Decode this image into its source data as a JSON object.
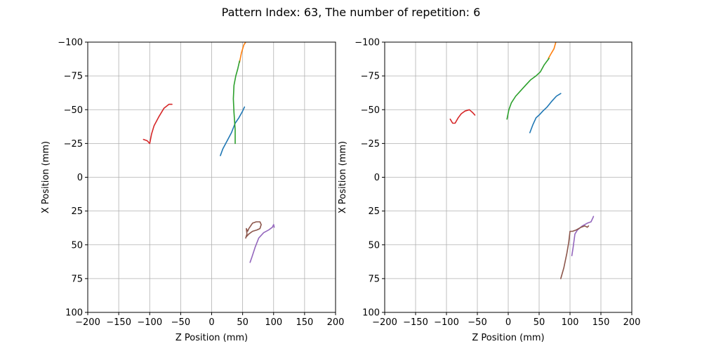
{
  "figure": {
    "title": "Pattern Index: 63, The number of repetition: 6"
  },
  "chart_data": [
    {
      "type": "line",
      "xlabel": "Z Position (mm)",
      "ylabel": "X Position (mm)",
      "xlim": [
        -200,
        200
      ],
      "ylim": [
        100,
        -100
      ],
      "y_inverted": true,
      "grid": true,
      "xticks": [
        -200,
        -150,
        -100,
        -50,
        0,
        50,
        100,
        150,
        200
      ],
      "yticks": [
        -100,
        -75,
        -50,
        -25,
        0,
        25,
        50,
        75,
        100
      ],
      "series": [
        {
          "color": "#1f77b4",
          "points": [
            [
              14,
              -16
            ],
            [
              18,
              -21
            ],
            [
              25,
              -27
            ],
            [
              32,
              -33
            ],
            [
              38,
              -40
            ],
            [
              44,
              -44
            ],
            [
              50,
              -49
            ],
            [
              53,
              -52
            ]
          ]
        },
        {
          "color": "#ff7f0e",
          "points": [
            [
              45,
              -85
            ],
            [
              48,
              -92
            ],
            [
              52,
              -98
            ],
            [
              55,
              -100
            ]
          ]
        },
        {
          "color": "#2ca02c",
          "points": [
            [
              38,
              -25
            ],
            [
              38,
              -35
            ],
            [
              36,
              -48
            ],
            [
              35,
              -58
            ],
            [
              36,
              -68
            ],
            [
              39,
              -75
            ],
            [
              42,
              -80
            ],
            [
              45,
              -86
            ]
          ]
        },
        {
          "color": "#d62728",
          "points": [
            [
              -110,
              -28
            ],
            [
              -104,
              -27
            ],
            [
              -100,
              -25
            ],
            [
              -97,
              -32
            ],
            [
              -93,
              -38
            ],
            [
              -85,
              -45
            ],
            [
              -77,
              -51
            ],
            [
              -69,
              -54
            ],
            [
              -64,
              -54
            ]
          ]
        },
        {
          "color": "#9467bd",
          "points": [
            [
              62,
              63
            ],
            [
              65,
              59
            ],
            [
              70,
              52
            ],
            [
              76,
              45
            ],
            [
              84,
              41
            ],
            [
              92,
              39
            ],
            [
              98,
              37
            ],
            [
              100,
              35
            ],
            [
              101,
              37
            ]
          ]
        },
        {
          "color": "#8c564b",
          "points": [
            [
              55,
              45
            ],
            [
              57,
              42
            ],
            [
              56,
              38
            ],
            [
              58,
              40
            ],
            [
              60,
              38
            ],
            [
              66,
              34
            ],
            [
              72,
              33
            ],
            [
              78,
              33
            ],
            [
              80,
              35
            ],
            [
              78,
              38
            ],
            [
              73,
              39
            ],
            [
              66,
              40
            ],
            [
              60,
              42
            ],
            [
              56,
              44
            ]
          ]
        }
      ]
    },
    {
      "type": "line",
      "xlabel": "Z Position (mm)",
      "ylabel": "X Position (mm)",
      "xlim": [
        -200,
        200
      ],
      "ylim": [
        100,
        -100
      ],
      "y_inverted": true,
      "grid": true,
      "xticks": [
        -200,
        -150,
        -100,
        -50,
        0,
        50,
        100,
        150,
        200
      ],
      "yticks": [
        -100,
        -75,
        -50,
        -25,
        0,
        25,
        50,
        75,
        100
      ],
      "series": [
        {
          "color": "#1f77b4",
          "points": [
            [
              35,
              -33
            ],
            [
              40,
              -39
            ],
            [
              45,
              -44
            ],
            [
              50,
              -46
            ],
            [
              56,
              -49
            ],
            [
              63,
              -52
            ],
            [
              70,
              -56
            ],
            [
              78,
              -60
            ],
            [
              85,
              -62
            ]
          ]
        },
        {
          "color": "#ff7f0e",
          "points": [
            [
              65,
              -88
            ],
            [
              70,
              -92
            ],
            [
              74,
              -95
            ],
            [
              77,
              -100
            ]
          ]
        },
        {
          "color": "#2ca02c",
          "points": [
            [
              -2,
              -43
            ],
            [
              1,
              -50
            ],
            [
              5,
              -55
            ],
            [
              12,
              -60
            ],
            [
              20,
              -64
            ],
            [
              28,
              -68
            ],
            [
              36,
              -72
            ],
            [
              45,
              -75
            ],
            [
              52,
              -78
            ],
            [
              58,
              -83
            ],
            [
              66,
              -88
            ]
          ]
        },
        {
          "color": "#d62728",
          "points": [
            [
              -94,
              -43
            ],
            [
              -90,
              -40
            ],
            [
              -86,
              -40
            ],
            [
              -81,
              -44
            ],
            [
              -76,
              -47
            ],
            [
              -70,
              -49
            ],
            [
              -63,
              -50
            ],
            [
              -58,
              -48
            ],
            [
              -54,
              -46
            ]
          ]
        },
        {
          "color": "#9467bd",
          "points": [
            [
              103,
              58
            ],
            [
              105,
              52
            ],
            [
              108,
              42
            ],
            [
              112,
              39
            ],
            [
              120,
              36
            ],
            [
              128,
              34
            ],
            [
              134,
              33
            ],
            [
              137,
              30
            ],
            [
              138,
              29
            ]
          ]
        },
        {
          "color": "#8c564b",
          "points": [
            [
              85,
              75
            ],
            [
              90,
              67
            ],
            [
              95,
              56
            ],
            [
              98,
              48
            ],
            [
              100,
              40
            ],
            [
              104,
              40
            ],
            [
              110,
              39
            ],
            [
              118,
              37
            ],
            [
              124,
              36
            ],
            [
              128,
              37
            ],
            [
              130,
              36
            ]
          ]
        }
      ]
    }
  ]
}
